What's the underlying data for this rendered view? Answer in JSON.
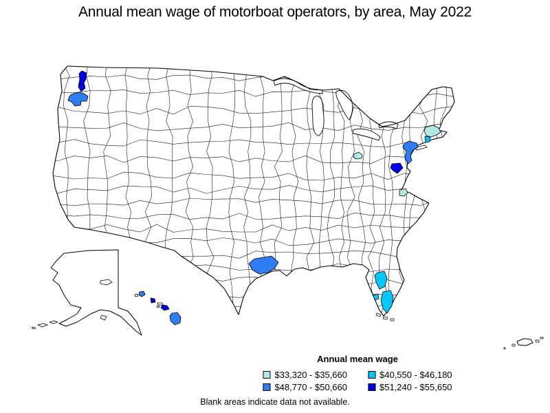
{
  "title": "Annual mean wage of motorboat operators, by area, May 2022",
  "note": "Blank areas indicate data not available.",
  "legend": {
    "title": "Annual mean wage",
    "display_order": [
      0,
      2,
      1,
      3
    ],
    "items": [
      {
        "label": "$33,320 - $35,660",
        "color": "#b0e9e6"
      },
      {
        "label": "$40,550 - $46,180",
        "color": "#00c8fa"
      },
      {
        "label": "$48,770 - $50,660",
        "color": "#2f7df2"
      },
      {
        "label": "$51,240 - $55,650",
        "color": "#0000e6"
      }
    ]
  },
  "map": {
    "land_color": "#ffffff",
    "border_color": "#000000",
    "areas": [
      {
        "name": "puget-sound-wa",
        "category": 3
      },
      {
        "name": "southwest-washington",
        "category": 2
      },
      {
        "name": "central-pennsylvania",
        "category": 0
      },
      {
        "name": "boston-cape-cod-ma",
        "category": 0
      },
      {
        "name": "southern-new-england",
        "category": 1
      },
      {
        "name": "new-york-northern-new-jersey",
        "category": 2
      },
      {
        "name": "washington-dc-area",
        "category": 3
      },
      {
        "name": "hampton-roads-va",
        "category": 0
      },
      {
        "name": "houston-gulf-coast-tx",
        "category": 2
      },
      {
        "name": "east-central-florida",
        "category": 1
      },
      {
        "name": "southwest-florida",
        "category": 1
      },
      {
        "name": "southeast-florida",
        "category": 1
      },
      {
        "name": "kauai-hi",
        "category": 2
      },
      {
        "name": "oahu-hi",
        "category": 3
      },
      {
        "name": "maui-hi",
        "category": 3
      },
      {
        "name": "hawaii-island-hi",
        "category": 2
      }
    ]
  }
}
